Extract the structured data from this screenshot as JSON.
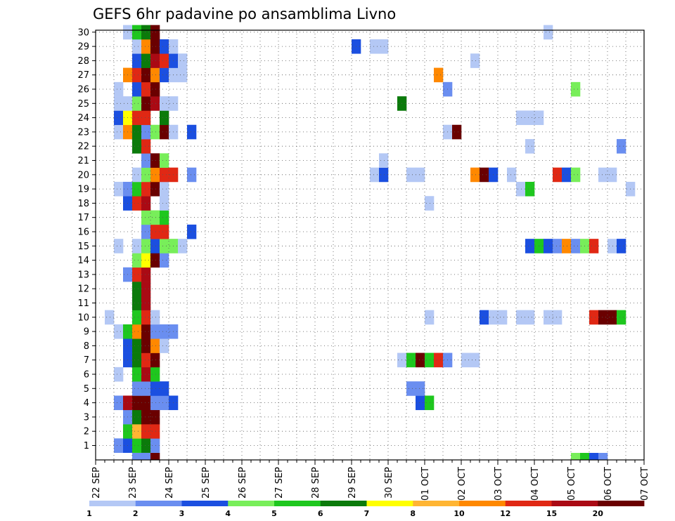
{
  "chart_data": {
    "type": "heatmap",
    "title": "GEFS 6hr padavine po ansamblima Livno",
    "x_tick_labels": [
      "22 SEP",
      "23 SEP",
      "24 SEP",
      "25 SEP",
      "26 SEP",
      "27 SEP",
      "28 SEP",
      "29 SEP",
      "30 SEP",
      "01 OCT",
      "02 OCT",
      "03 OCT",
      "04 OCT",
      "05 OCT",
      "06 OCT",
      "07 OCT"
    ],
    "y_tick_labels": [
      "1",
      "2",
      "3",
      "4",
      "5",
      "6",
      "7",
      "8",
      "9",
      "10",
      "11",
      "12",
      "13",
      "14",
      "15",
      "16",
      "17",
      "18",
      "19",
      "20",
      "21",
      "22",
      "23",
      "24",
      "25",
      "26",
      "27",
      "28",
      "29",
      "30"
    ],
    "x_step_hours": 6,
    "grid": true,
    "colorbar": {
      "position": "bottom",
      "labels": [
        "1",
        "2",
        "3",
        "4",
        "5",
        "6",
        "7",
        "8",
        "10",
        "12",
        "15",
        "20"
      ],
      "colors": [
        "#b4c8f5",
        "#6a8ef0",
        "#1b4fe0",
        "#78ee5a",
        "#1ec71e",
        "#0b7a0b",
        "#ffff00",
        "#ffb533",
        "#ff8800",
        "#e02814",
        "#aa0a14",
        "#6a0000"
      ]
    },
    "cells": [
      [
        0,
        2,
        2
      ],
      [
        0,
        3,
        3
      ],
      [
        0,
        4,
        4
      ],
      [
        0,
        5,
        6
      ],
      [
        0,
        6,
        10
      ],
      [
        0,
        7,
        11
      ],
      [
        0,
        8,
        13
      ],
      [
        0,
        9,
        14
      ],
      [
        0,
        10,
        15
      ],
      [
        0,
        11,
        16
      ],
      [
        0,
        12,
        17
      ],
      [
        0,
        13,
        18
      ],
      [
        0,
        14,
        19
      ],
      [
        0,
        15,
        20
      ],
      [
        0,
        16,
        21
      ],
      [
        0,
        17,
        23
      ],
      [
        0,
        18,
        25
      ],
      [
        0,
        20,
        27
      ],
      [
        0,
        21,
        29
      ],
      [
        0,
        22,
        30
      ],
      [
        0,
        23,
        31
      ],
      [
        1,
        7,
        1
      ],
      [
        1,
        7,
        2
      ],
      [
        1,
        8,
        2
      ],
      [
        1,
        9,
        3
      ],
      [
        1,
        10,
        5
      ],
      [
        1,
        11,
        6
      ],
      [
        1,
        12,
        7
      ],
      [
        1,
        13,
        8
      ],
      [
        1,
        14,
        9
      ],
      [
        1,
        15,
        10
      ],
      [
        1,
        16,
        11
      ],
      [
        1,
        17,
        12
      ],
      [
        1,
        18,
        13
      ],
      [
        1,
        19,
        14
      ],
      [
        1,
        20,
        15
      ],
      [
        1,
        21,
        16
      ],
      [
        1,
        22,
        17
      ],
      [
        1,
        23,
        18
      ],
      [
        1,
        24,
        20
      ],
      [
        1,
        25,
        21
      ],
      [
        1,
        26,
        22
      ],
      [
        1,
        27,
        23
      ],
      [
        1,
        28,
        25
      ],
      [
        1,
        29,
        26
      ],
      [
        1,
        30,
        27
      ],
      [
        1,
        31,
        29
      ],
      [
        1,
        32,
        30
      ],
      [
        1,
        33,
        31
      ],
      [
        1,
        34,
        32
      ],
      [
        2,
        6,
        2
      ],
      [
        2,
        7,
        4
      ],
      [
        2,
        8,
        5
      ],
      [
        2,
        9,
        6
      ],
      [
        2,
        10,
        8
      ],
      [
        2,
        11,
        9
      ],
      [
        2,
        12,
        10
      ],
      [
        2,
        13,
        11
      ],
      [
        2,
        14,
        12
      ],
      [
        2,
        15,
        13
      ],
      [
        2,
        16,
        14
      ],
      [
        2,
        17,
        15
      ],
      [
        2,
        18,
        16
      ],
      [
        2,
        19,
        17
      ],
      [
        2,
        20,
        18
      ],
      [
        2,
        21,
        19
      ],
      [
        2,
        22,
        20
      ],
      [
        2,
        23,
        21
      ],
      [
        2,
        24,
        22
      ],
      [
        2,
        25,
        23
      ],
      [
        2,
        26,
        24
      ],
      [
        2,
        27,
        25
      ],
      [
        2,
        28,
        26
      ],
      [
        2,
        29,
        27
      ],
      [
        2,
        30,
        28
      ],
      [
        2,
        31,
        29
      ],
      [
        2,
        32,
        30
      ],
      [
        2,
        33,
        31
      ],
      [
        2,
        34,
        32
      ],
      [
        3,
        7,
        2
      ],
      [
        3,
        8,
        3
      ],
      [
        3,
        9,
        5
      ],
      [
        3,
        10,
        7
      ],
      [
        3,
        11,
        8
      ],
      [
        3,
        12,
        9
      ],
      [
        3,
        13,
        10
      ],
      [
        3,
        14,
        11
      ],
      [
        3,
        15,
        12
      ],
      [
        3,
        16,
        13
      ],
      [
        3,
        17,
        14
      ],
      [
        3,
        18,
        15
      ],
      [
        3,
        19,
        16
      ],
      [
        3,
        20,
        17
      ],
      [
        3,
        21,
        18
      ],
      [
        3,
        22,
        19
      ],
      [
        3,
        23,
        20
      ],
      [
        3,
        24,
        21
      ],
      [
        3,
        25,
        22
      ],
      [
        3,
        26,
        23
      ],
      [
        3,
        27,
        24
      ],
      [
        3,
        28,
        25
      ],
      [
        3,
        29,
        26
      ],
      [
        3,
        30,
        27
      ],
      [
        3,
        31,
        28
      ],
      [
        3,
        32,
        29
      ],
      [
        3,
        33,
        30
      ],
      [
        3,
        34,
        31
      ],
      [
        4,
        6,
        2
      ],
      [
        4,
        7,
        3
      ],
      [
        4,
        8,
        4
      ],
      [
        4,
        9,
        6
      ],
      [
        4,
        10,
        7
      ],
      [
        4,
        11,
        8
      ],
      [
        4,
        12,
        9
      ],
      [
        4,
        13,
        10
      ],
      [
        4,
        14,
        11
      ],
      [
        4,
        15,
        12
      ],
      [
        4,
        16,
        13
      ],
      [
        4,
        17,
        14
      ],
      [
        4,
        18,
        15
      ],
      [
        4,
        19,
        16
      ],
      [
        4,
        20,
        17
      ],
      [
        4,
        21,
        18
      ],
      [
        4,
        22,
        19
      ],
      [
        4,
        23,
        20
      ],
      [
        4,
        24,
        21
      ],
      [
        4,
        25,
        22
      ],
      [
        4,
        26,
        23
      ],
      [
        4,
        27,
        24
      ],
      [
        4,
        28,
        25
      ],
      [
        4,
        29,
        26
      ],
      [
        4,
        30,
        27
      ],
      [
        4,
        31,
        28
      ],
      [
        4,
        32,
        29
      ],
      [
        4,
        33,
        30
      ],
      [
        4,
        34,
        31
      ]
    ]
  },
  "cells_by_row": [
    [
      [
        2,
        2
      ],
      [
        3,
        3
      ],
      [
        4,
        5
      ],
      [
        5,
        6
      ],
      [
        6,
        2
      ]
    ],
    [
      [
        3,
        5
      ],
      [
        4,
        8
      ],
      [
        5,
        10
      ],
      [
        6,
        10
      ]
    ],
    [
      [
        3,
        2
      ],
      [
        4,
        6
      ],
      [
        5,
        12
      ],
      [
        6,
        12
      ]
    ],
    [
      [
        2,
        2
      ],
      [
        3,
        11
      ],
      [
        4,
        12
      ],
      [
        5,
        12
      ],
      [
        6,
        2
      ],
      [
        7,
        2
      ],
      [
        8,
        3
      ],
      [
        35,
        3
      ],
      [
        36,
        5
      ],
      [
        64,
        2
      ],
      [
        78,
        3
      ],
      [
        79,
        5
      ],
      [
        80,
        8
      ],
      [
        81,
        6
      ],
      [
        82,
        2
      ],
      [
        88,
        2
      ],
      [
        89,
        2
      ],
      [
        90,
        3
      ]
    ],
    [
      [
        4,
        2
      ],
      [
        5,
        2
      ],
      [
        6,
        3
      ],
      [
        7,
        3
      ],
      [
        34,
        2
      ],
      [
        35,
        2
      ]
    ],
    [
      [
        2,
        1
      ],
      [
        4,
        5
      ],
      [
        5,
        11
      ],
      [
        6,
        5
      ]
    ],
    [
      [
        3,
        3
      ],
      [
        4,
        6
      ],
      [
        5,
        10
      ],
      [
        6,
        12
      ],
      [
        33,
        1
      ],
      [
        34,
        5
      ],
      [
        35,
        12
      ],
      [
        36,
        5
      ],
      [
        37,
        10
      ],
      [
        38,
        2
      ],
      [
        40,
        1
      ],
      [
        41,
        1
      ]
    ],
    [
      [
        3,
        3
      ],
      [
        4,
        6
      ],
      [
        5,
        12
      ],
      [
        6,
        9
      ],
      [
        7,
        1
      ]
    ],
    [
      [
        2,
        1
      ],
      [
        3,
        5
      ],
      [
        4,
        9
      ],
      [
        5,
        12
      ],
      [
        6,
        2
      ],
      [
        7,
        2
      ],
      [
        8,
        2
      ]
    ],
    [
      [
        1,
        1
      ],
      [
        4,
        5
      ],
      [
        5,
        10
      ],
      [
        6,
        1
      ],
      [
        36,
        1
      ],
      [
        42,
        3
      ],
      [
        43,
        1
      ],
      [
        44,
        1
      ],
      [
        46,
        1
      ],
      [
        47,
        1
      ],
      [
        49,
        1
      ],
      [
        50,
        1
      ],
      [
        54,
        10
      ],
      [
        55,
        12
      ],
      [
        56,
        12
      ],
      [
        57,
        5
      ]
    ],
    [
      [
        4,
        6
      ],
      [
        5,
        11
      ]
    ],
    [
      [
        4,
        6
      ],
      [
        5,
        11
      ]
    ],
    [
      [
        3,
        2
      ],
      [
        4,
        10
      ],
      [
        5,
        11
      ]
    ],
    [
      [
        4,
        4
      ],
      [
        5,
        7
      ],
      [
        6,
        12
      ],
      [
        7,
        2
      ]
    ],
    [
      [
        2,
        1
      ],
      [
        4,
        1
      ],
      [
        5,
        4
      ],
      [
        6,
        3
      ],
      [
        7,
        4
      ],
      [
        8,
        4
      ],
      [
        9,
        1
      ],
      [
        47,
        3
      ],
      [
        48,
        5
      ],
      [
        49,
        3
      ],
      [
        50,
        2
      ],
      [
        51,
        9
      ],
      [
        52,
        2
      ],
      [
        53,
        4
      ],
      [
        54,
        10
      ],
      [
        56,
        1
      ],
      [
        57,
        3
      ]
    ],
    [
      [
        5,
        2
      ],
      [
        6,
        10
      ],
      [
        7,
        10
      ],
      [
        10,
        3
      ]
    ],
    [
      [
        5,
        4
      ],
      [
        6,
        4
      ],
      [
        7,
        5
      ]
    ],
    [
      [
        3,
        3
      ],
      [
        4,
        10
      ],
      [
        5,
        11
      ],
      [
        7,
        1
      ],
      [
        36,
        1
      ]
    ],
    [
      [
        2,
        1
      ],
      [
        3,
        2
      ],
      [
        4,
        5
      ],
      [
        5,
        10
      ],
      [
        6,
        12
      ],
      [
        7,
        1
      ],
      [
        46,
        1
      ],
      [
        47,
        5
      ],
      [
        58,
        1
      ]
    ],
    [
      [
        4,
        1
      ],
      [
        5,
        4
      ],
      [
        6,
        9
      ],
      [
        7,
        10
      ],
      [
        8,
        10
      ],
      [
        10,
        2
      ],
      [
        30,
        1
      ],
      [
        31,
        3
      ],
      [
        34,
        1
      ],
      [
        35,
        1
      ],
      [
        41,
        9
      ],
      [
        42,
        12
      ],
      [
        43,
        3
      ],
      [
        45,
        1
      ],
      [
        50,
        10
      ],
      [
        51,
        3
      ],
      [
        52,
        4
      ],
      [
        55,
        1
      ],
      [
        56,
        1
      ]
    ],
    [
      [
        5,
        2
      ],
      [
        6,
        12
      ],
      [
        7,
        4
      ],
      [
        31,
        1
      ]
    ],
    [
      [
        4,
        6
      ],
      [
        5,
        10
      ],
      [
        57,
        2
      ],
      [
        47,
        1
      ]
    ],
    [
      [
        2,
        1
      ],
      [
        3,
        9
      ],
      [
        4,
        6
      ],
      [
        5,
        2
      ],
      [
        6,
        4
      ],
      [
        7,
        12
      ],
      [
        8,
        1
      ],
      [
        10,
        3
      ],
      [
        38,
        1
      ],
      [
        39,
        12
      ]
    ],
    [
      [
        2,
        3
      ],
      [
        3,
        7
      ],
      [
        4,
        10
      ],
      [
        5,
        10
      ],
      [
        7,
        6
      ],
      [
        46,
        1
      ],
      [
        47,
        1
      ],
      [
        48,
        1
      ]
    ],
    [
      [
        2,
        1
      ],
      [
        3,
        1
      ],
      [
        4,
        4
      ],
      [
        5,
        12
      ],
      [
        6,
        11
      ],
      [
        7,
        1
      ],
      [
        8,
        1
      ],
      [
        33,
        6
      ]
    ],
    [
      [
        2,
        1
      ],
      [
        4,
        3
      ],
      [
        5,
        10
      ],
      [
        6,
        12
      ],
      [
        38,
        2
      ],
      [
        52,
        4
      ]
    ],
    [
      [
        3,
        9
      ],
      [
        4,
        10
      ],
      [
        5,
        12
      ],
      [
        6,
        9
      ],
      [
        7,
        3
      ],
      [
        8,
        1
      ],
      [
        9,
        1
      ],
      [
        37,
        9
      ]
    ],
    [
      [
        4,
        3
      ],
      [
        5,
        6
      ],
      [
        6,
        11
      ],
      [
        7,
        10
      ],
      [
        8,
        3
      ],
      [
        9,
        1
      ],
      [
        41,
        1
      ]
    ],
    [
      [
        4,
        1
      ],
      [
        5,
        9
      ],
      [
        6,
        12
      ],
      [
        7,
        3
      ],
      [
        8,
        1
      ],
      [
        28,
        3
      ],
      [
        30,
        1
      ],
      [
        31,
        1
      ]
    ],
    [
      [
        3,
        1
      ],
      [
        4,
        5
      ],
      [
        5,
        6
      ],
      [
        6,
        12
      ],
      [
        49,
        1
      ]
    ]
  ],
  "bottom_row": [
    [
      4,
      2
    ],
    [
      5,
      2
    ],
    [
      6,
      12
    ],
    [
      52,
      4
    ],
    [
      53,
      5
    ],
    [
      54,
      3
    ],
    [
      55,
      2
    ]
  ]
}
